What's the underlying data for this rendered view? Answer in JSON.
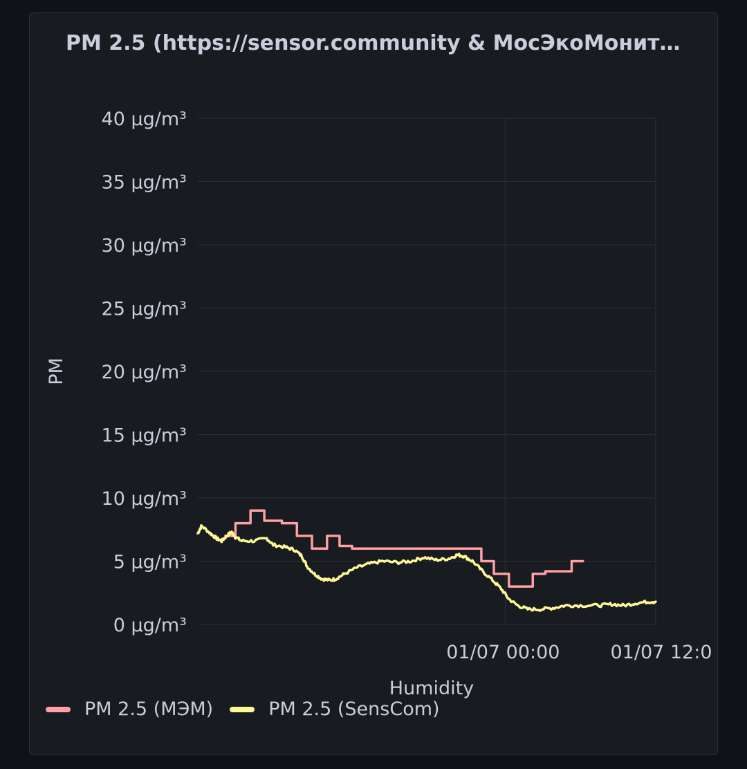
{
  "panel": {
    "title": "PM 2.5 (https://sensor.community & МосЭкоМонит…"
  },
  "colors": {
    "background": "#111217",
    "panel": "#181b1f",
    "grid": "#2c2f35",
    "text": "#ccccdc",
    "mem_series": "#ff9fa6",
    "senscom_series": "#fff899"
  },
  "chart_data": {
    "type": "line",
    "title": "PM 2.5 (https://sensor.community & МосЭкоМонит…",
    "xlabel": "Humidity",
    "ylabel": "PM",
    "x_unit": "hours relative to 01/07 00:00",
    "xlim": [
      -24.5,
      12
    ],
    "ylim": [
      0,
      40
    ],
    "y_ticks": [
      0,
      5,
      10,
      15,
      20,
      25,
      30,
      35,
      40
    ],
    "y_tick_labels": [
      "0 µg/m³",
      "5 µg/m³",
      "10 µg/m³",
      "15 µg/m³",
      "20 µg/m³",
      "25 µg/m³",
      "30 µg/m³",
      "35 µg/m³",
      "40 µg/m³"
    ],
    "x_ticks": [
      0,
      12
    ],
    "x_tick_labels": [
      "01/07 00:00",
      "01/07 12:0"
    ],
    "grid": true,
    "legend_position": "bottom-left",
    "series": [
      {
        "name": "PM 2.5 (МЭМ)",
        "color": "#ff9fa6",
        "step": true,
        "points": [
          [
            -22.3,
            7
          ],
          [
            -21.5,
            8
          ],
          [
            -20.3,
            9
          ],
          [
            -19.2,
            8.2
          ],
          [
            -17.8,
            8
          ],
          [
            -16.6,
            7
          ],
          [
            -15.4,
            6
          ],
          [
            -14.2,
            7
          ],
          [
            -13.2,
            6.2
          ],
          [
            -12.2,
            6
          ],
          [
            -1.9,
            5
          ],
          [
            -0.9,
            4
          ],
          [
            0.3,
            3
          ],
          [
            2.2,
            4
          ],
          [
            3.2,
            4.2
          ],
          [
            5.3,
            5
          ],
          [
            6.2,
            5
          ]
        ]
      },
      {
        "name": "PM 2.5 (SensCom)",
        "color": "#fff899",
        "step": false,
        "points": [
          [
            -24.5,
            7.2
          ],
          [
            -24.2,
            7.8
          ],
          [
            -23.5,
            7.2
          ],
          [
            -23.0,
            6.8
          ],
          [
            -22.6,
            6.6
          ],
          [
            -22.2,
            7.0
          ],
          [
            -21.8,
            7.3
          ],
          [
            -21.5,
            6.9
          ],
          [
            -21.0,
            6.6
          ],
          [
            -20.0,
            6.6
          ],
          [
            -19.0,
            6.8
          ],
          [
            -18.5,
            6.3
          ],
          [
            -17.5,
            6.1
          ],
          [
            -16.8,
            5.9
          ],
          [
            -16.2,
            5.4
          ],
          [
            -15.8,
            4.6
          ],
          [
            -15.2,
            4.0
          ],
          [
            -14.6,
            3.6
          ],
          [
            -14.0,
            3.5
          ],
          [
            -13.5,
            3.6
          ],
          [
            -12.8,
            4.0
          ],
          [
            -11.8,
            4.5
          ],
          [
            -10.8,
            4.8
          ],
          [
            -9.8,
            5.0
          ],
          [
            -8.5,
            4.9
          ],
          [
            -7.5,
            5.0
          ],
          [
            -6.5,
            5.3
          ],
          [
            -5.5,
            5.1
          ],
          [
            -4.5,
            5.2
          ],
          [
            -3.8,
            5.5
          ],
          [
            -3.3,
            5.4
          ],
          [
            -2.6,
            5.0
          ],
          [
            -1.8,
            4.2
          ],
          [
            -1.0,
            3.5
          ],
          [
            -0.3,
            2.8
          ],
          [
            0.3,
            2.0
          ],
          [
            1.0,
            1.5
          ],
          [
            1.8,
            1.2
          ],
          [
            2.8,
            1.2
          ],
          [
            3.8,
            1.3
          ],
          [
            4.8,
            1.5
          ],
          [
            6.0,
            1.5
          ],
          [
            7.5,
            1.5
          ],
          [
            8.5,
            1.6
          ],
          [
            9.5,
            1.5
          ],
          [
            10.5,
            1.7
          ],
          [
            11.5,
            1.8
          ],
          [
            12.0,
            1.8
          ]
        ]
      }
    ]
  }
}
